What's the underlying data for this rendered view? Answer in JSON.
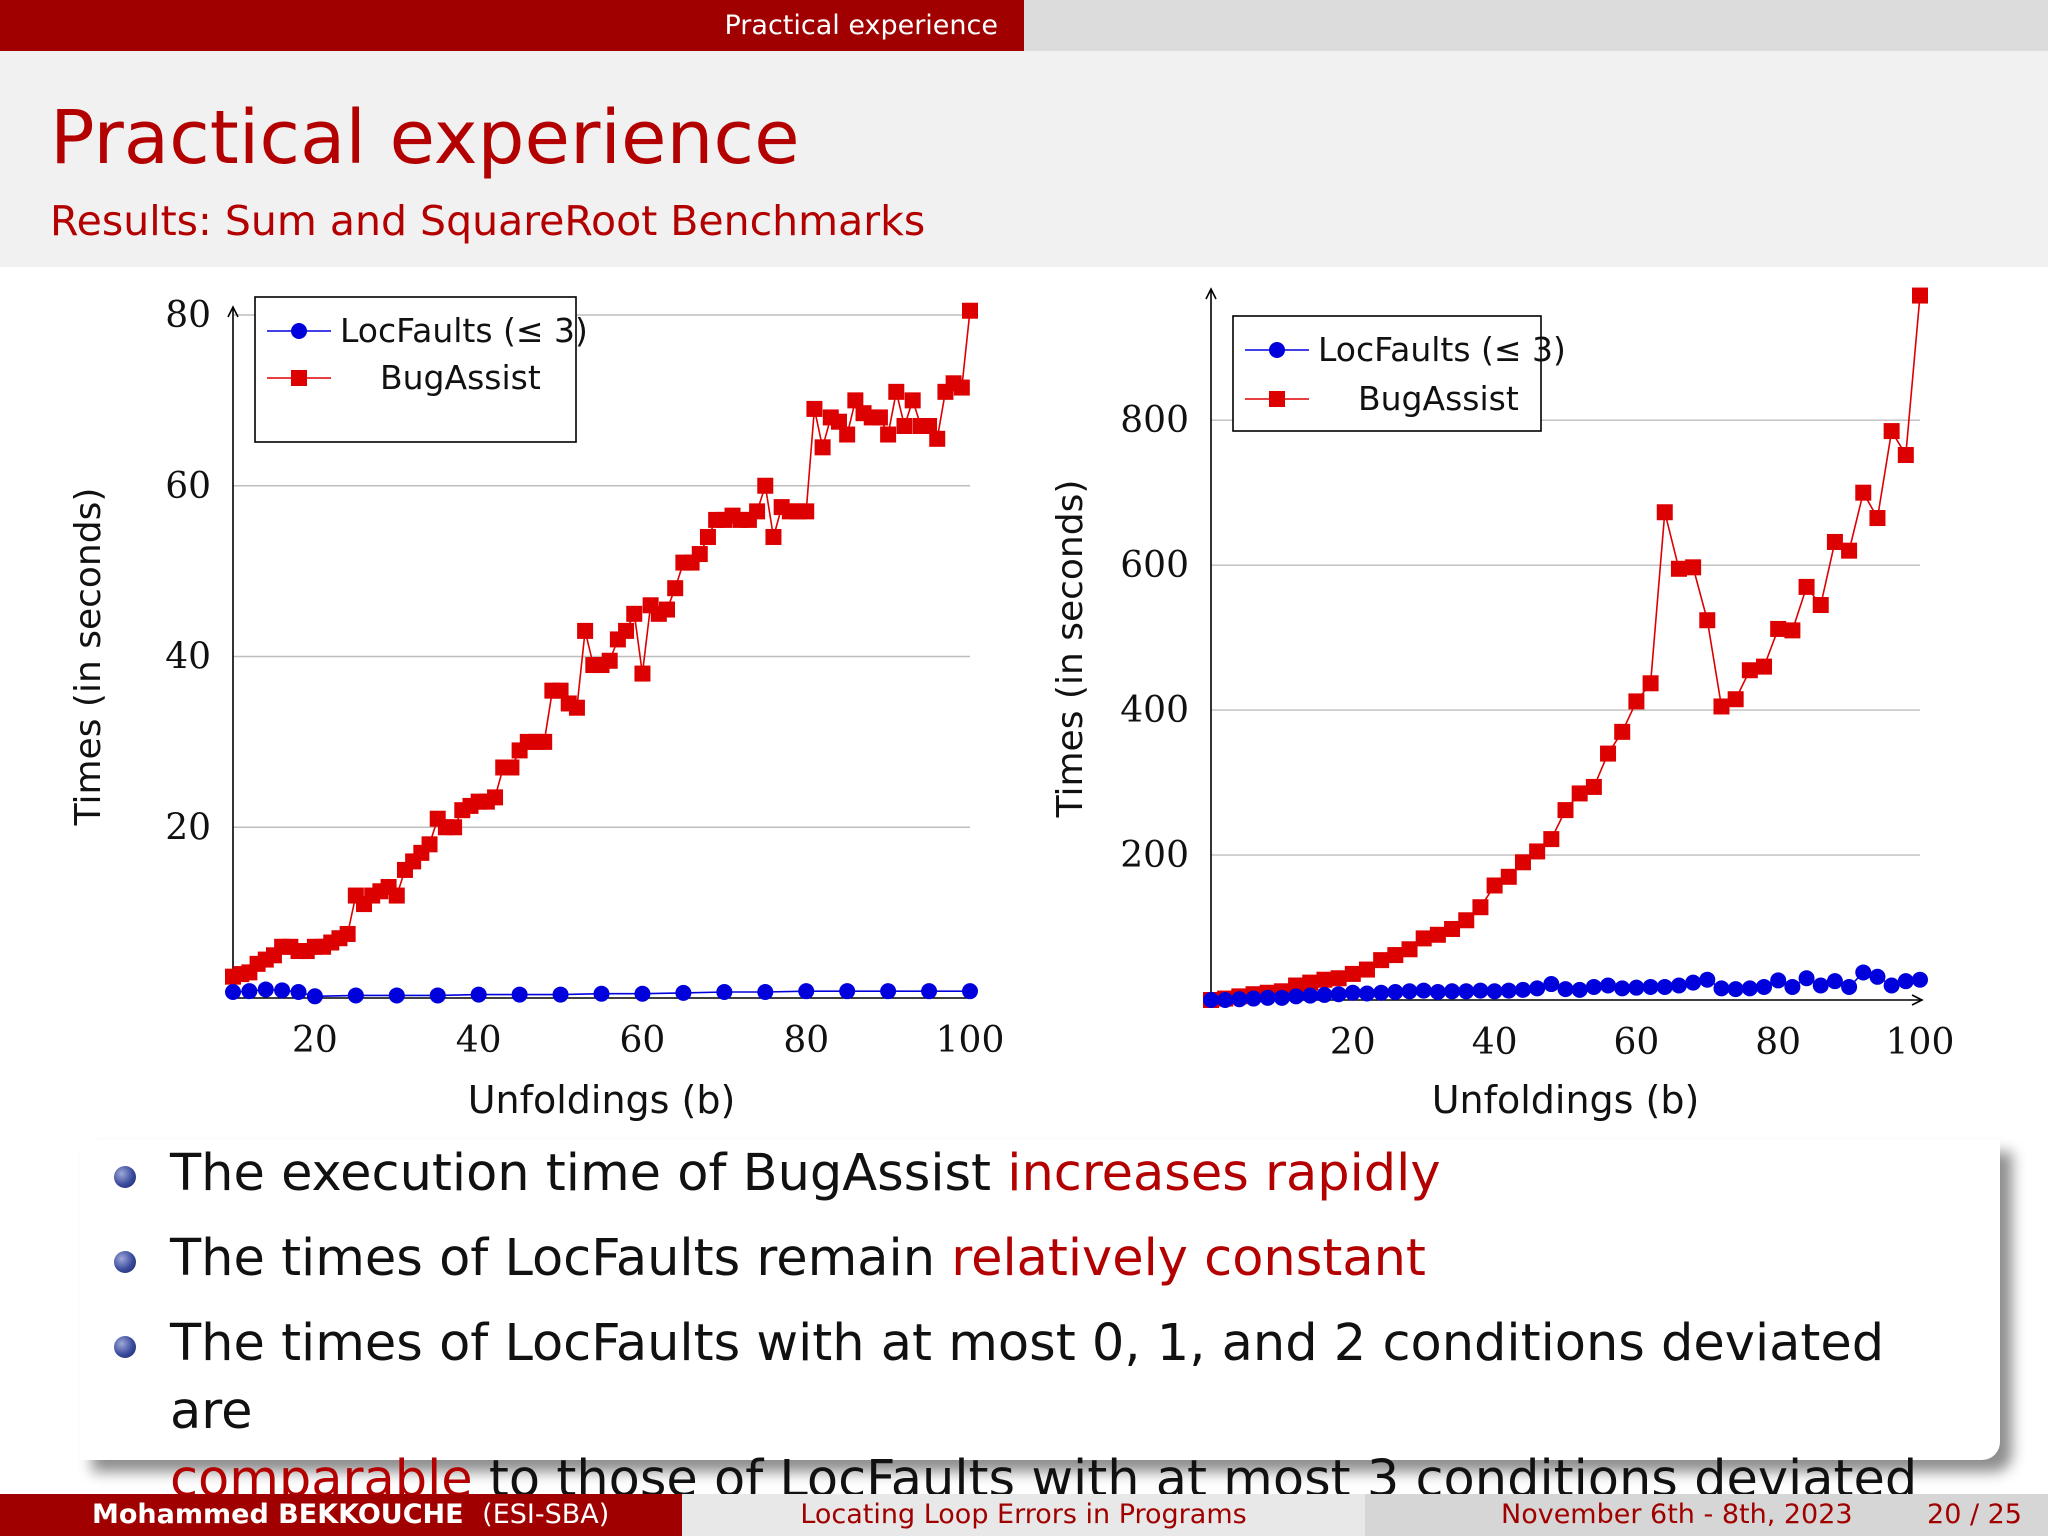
{
  "header": {
    "section": "Practical experience"
  },
  "frame": {
    "title": "Practical experience",
    "subtitle": "Results: Sum and SquareRoot Benchmarks"
  },
  "colors": {
    "locfaults": "#0000dd",
    "bugassist": "#dd0000",
    "accent": "#a00000"
  },
  "chart_data": [
    {
      "type": "line",
      "xlabel": "Unfoldings (b)",
      "ylabel": "Times (in seconds)",
      "xlim": [
        10,
        100
      ],
      "ylim": [
        0,
        80
      ],
      "xticks": [
        20,
        40,
        60,
        80,
        100
      ],
      "yticks": [
        20,
        40,
        60,
        80
      ],
      "grid": "horizontal",
      "legend": "top-left",
      "series": [
        {
          "name": "LocFaults (≤ 3)",
          "marker": "circle",
          "color": "#0000dd",
          "x": [
            10,
            12,
            14,
            16,
            18,
            20,
            25,
            30,
            35,
            40,
            45,
            50,
            55,
            60,
            65,
            70,
            75,
            80,
            85,
            90,
            95,
            100
          ],
          "y": [
            0.7,
            0.8,
            1.0,
            0.9,
            0.7,
            0.2,
            0.3,
            0.3,
            0.3,
            0.4,
            0.4,
            0.4,
            0.5,
            0.5,
            0.6,
            0.7,
            0.7,
            0.8,
            0.8,
            0.8,
            0.8,
            0.8
          ]
        },
        {
          "name": "BugAssist",
          "marker": "square",
          "color": "#dd0000",
          "x": [
            10,
            11,
            12,
            13,
            14,
            15,
            16,
            17,
            18,
            19,
            20,
            21,
            22,
            23,
            24,
            25,
            26,
            27,
            28,
            29,
            30,
            31,
            32,
            33,
            34,
            35,
            36,
            37,
            38,
            39,
            40,
            41,
            42,
            43,
            44,
            45,
            46,
            47,
            48,
            49,
            50,
            51,
            52,
            53,
            54,
            55,
            56,
            57,
            58,
            59,
            60,
            61,
            62,
            63,
            64,
            65,
            66,
            67,
            68,
            69,
            70,
            71,
            72,
            73,
            74,
            75,
            76,
            77,
            78,
            79,
            80,
            81,
            82,
            83,
            84,
            85,
            86,
            87,
            88,
            89,
            90,
            91,
            92,
            93,
            94,
            95,
            96,
            97,
            98,
            99,
            100
          ],
          "y": [
            2.5,
            2.8,
            3,
            4,
            4.5,
            5,
            6,
            6,
            5.5,
            5.5,
            6,
            6,
            6.5,
            7,
            7.5,
            12,
            11,
            12,
            12.5,
            13,
            12,
            15,
            16,
            17,
            18,
            21,
            20,
            20,
            22,
            22.5,
            23,
            23,
            23.5,
            27,
            27,
            29,
            30,
            30,
            30,
            36,
            36,
            34.5,
            34,
            43,
            39,
            39,
            39.5,
            42,
            43,
            45,
            38,
            46,
            45,
            45.5,
            48,
            51,
            51,
            52,
            54,
            56,
            56,
            56.5,
            56,
            56,
            57,
            60,
            54,
            57.5,
            57,
            57,
            57,
            69,
            64.5,
            68,
            67.5,
            66,
            70,
            68.5,
            68,
            68,
            66,
            71,
            67,
            70,
            67,
            67,
            65.5,
            71,
            72,
            71.5,
            80.5
          ]
        }
      ]
    },
    {
      "type": "line",
      "xlabel": "Unfoldings (b)",
      "ylabel": "Times (in seconds)",
      "xlim": [
        0,
        100
      ],
      "ylim": [
        0,
        970
      ],
      "xticks": [
        20,
        40,
        60,
        80,
        100
      ],
      "yticks": [
        200,
        400,
        600,
        800
      ],
      "grid": "horizontal",
      "legend": "top-left",
      "series": [
        {
          "name": "LocFaults (≤ 3)",
          "marker": "circle",
          "color": "#0000dd",
          "x": [
            0,
            2,
            4,
            6,
            8,
            10,
            12,
            14,
            16,
            18,
            20,
            22,
            24,
            26,
            28,
            30,
            32,
            34,
            36,
            38,
            40,
            42,
            44,
            46,
            48,
            50,
            52,
            54,
            56,
            58,
            60,
            62,
            64,
            66,
            68,
            70,
            72,
            74,
            76,
            78,
            80,
            82,
            84,
            86,
            88,
            90,
            92,
            94,
            96,
            98,
            100
          ],
          "y": [
            0,
            0,
            1,
            2,
            3,
            3,
            5,
            6,
            7,
            8,
            10,
            9,
            10,
            11,
            12,
            13,
            11,
            12,
            12,
            13,
            12,
            13,
            14,
            16,
            22,
            15,
            14,
            18,
            20,
            16,
            17,
            18,
            18,
            20,
            24,
            28,
            16,
            15,
            16,
            18,
            27,
            18,
            30,
            20,
            26,
            18,
            38,
            32,
            20,
            26,
            28
          ]
        },
        {
          "name": "BugAssist",
          "marker": "square",
          "color": "#dd0000",
          "x": [
            0,
            2,
            4,
            6,
            8,
            10,
            12,
            14,
            16,
            18,
            20,
            22,
            24,
            26,
            28,
            30,
            32,
            34,
            36,
            38,
            40,
            42,
            44,
            46,
            48,
            50,
            52,
            54,
            56,
            58,
            60,
            62,
            64,
            66,
            68,
            70,
            72,
            74,
            76,
            78,
            80,
            82,
            84,
            86,
            88,
            90,
            92,
            94,
            96,
            98,
            100
          ],
          "y": [
            0,
            2,
            5,
            8,
            10,
            12,
            20,
            24,
            28,
            30,
            36,
            42,
            55,
            62,
            70,
            85,
            90,
            98,
            110,
            128,
            158,
            170,
            190,
            205,
            222,
            262,
            285,
            294,
            340,
            370,
            412,
            437,
            673,
            595,
            597,
            524,
            405,
            415,
            455,
            460,
            512,
            510,
            570,
            545,
            632,
            620,
            700,
            665,
            785,
            752,
            972
          ]
        }
      ]
    }
  ],
  "bullets": [
    {
      "text": "The execution time of BugAssist ",
      "emph": "increases rapidly"
    },
    {
      "text": "The times of LocFaults remain ",
      "emph": "relatively constant"
    },
    {
      "line1": "The times of LocFaults with at most 0, 1, and 2 conditions deviated are",
      "emph": "comparable",
      "line2_rest": " to those of LocFaults with at most 3 conditions deviated"
    }
  ],
  "footer": {
    "author": "Mohammed BEKKOUCHE",
    "affiliation": "(ESI-SBA)",
    "talk": "Locating Loop Errors in Programs",
    "date": "November 6th - 8th, 2023",
    "page": "20 / 25"
  }
}
